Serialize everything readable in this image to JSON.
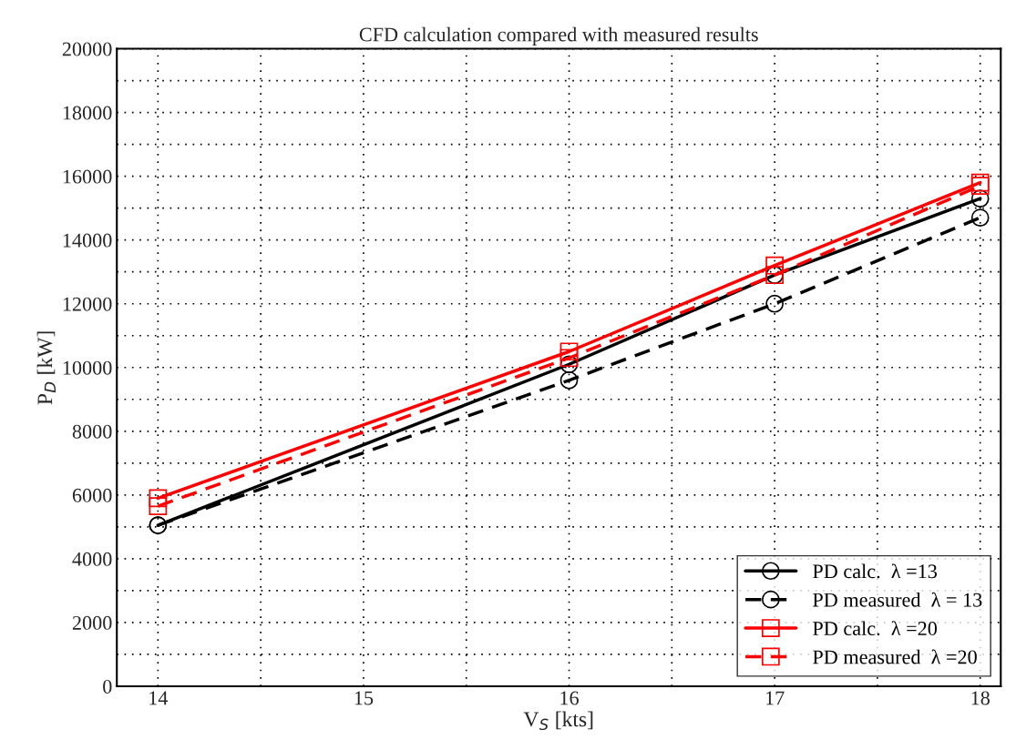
{
  "chart_data": {
    "type": "line",
    "title": "CFD calculation compared with measured results",
    "xlabel": "V$_{S}$ [kts]",
    "ylabel": "P$_{D}$ [kW]",
    "x": [
      14,
      16,
      17,
      18
    ],
    "series": [
      {
        "name": "PD calc.  λ =13",
        "color": "#000000",
        "line_style": "solid",
        "marker": "circle",
        "values": [
          5050,
          10100,
          12900,
          15300
        ]
      },
      {
        "name": "PD measured  λ = 13",
        "color": "#000000",
        "line_style": "dashed",
        "marker": "circle",
        "values": [
          5050,
          9600,
          12000,
          14700
        ]
      },
      {
        "name": "PD calc.  λ =20",
        "color": "#ff0000",
        "line_style": "solid",
        "marker": "square",
        "values": [
          5900,
          10500,
          13200,
          15800
        ]
      },
      {
        "name": "PD measured  λ =20",
        "color": "#ff0000",
        "line_style": "dashed",
        "marker": "square",
        "values": [
          5650,
          10300,
          12900,
          15700
        ]
      }
    ],
    "xlim": [
      13.8,
      18.1
    ],
    "xticks": [
      14,
      {
        "value": 14.5,
        "label": null
      },
      15,
      {
        "value": 15.5,
        "label": null
      },
      16,
      {
        "value": 16.5,
        "label": null
      },
      17,
      {
        "value": 17.5,
        "label": null
      },
      18
    ],
    "ylim": [
      0,
      20000
    ],
    "yticks": [
      0,
      {
        "value": 1000,
        "label": null
      },
      2000,
      {
        "value": 3000,
        "label": null
      },
      4000,
      {
        "value": 5000,
        "label": null
      },
      6000,
      {
        "value": 7000,
        "label": null
      },
      8000,
      {
        "value": 9000,
        "label": null
      },
      10000,
      {
        "value": 11000,
        "label": null
      },
      12000,
      {
        "value": 13000,
        "label": null
      },
      14000,
      {
        "value": 15000,
        "label": null
      },
      16000,
      {
        "value": 17000,
        "label": null
      },
      18000,
      {
        "value": 19000,
        "label": null
      },
      20000
    ],
    "grid": true,
    "legend": "bottom right"
  }
}
